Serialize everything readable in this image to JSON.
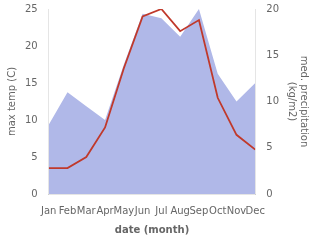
{
  "chart_data": {
    "type": "line",
    "categories": [
      "Jan",
      "Feb",
      "Mar",
      "Apr",
      "May",
      "Jun",
      "Jul",
      "Aug",
      "Sep",
      "Oct",
      "Nov",
      "Dec"
    ],
    "xlabel": "date (month)",
    "ylabel": "max temp (C)",
    "y2label": "med. precipitation\n(kg/m2)",
    "series": [
      {
        "type": "area",
        "color": "#b0b8e8",
        "axis": "y2",
        "values": [
          7.5,
          11.0,
          9.5,
          8.0,
          14.0,
          19.5,
          19.0,
          17.0,
          20.0,
          13.0,
          10.0,
          12.0
        ]
      },
      {
        "type": "line",
        "color": "#c0392b",
        "axis": "y",
        "values": [
          3.5,
          3.5,
          5.0,
          9.0,
          17.0,
          24.0,
          25.0,
          22.0,
          23.5,
          13.0,
          8.0,
          6.0
        ]
      }
    ],
    "ylim": [
      0,
      25
    ],
    "yticks": [
      0,
      5,
      10,
      15,
      20,
      25
    ],
    "y2lim": [
      0,
      20
    ],
    "y2ticks": [
      0,
      5,
      10,
      15,
      20
    ],
    "grid": false
  }
}
